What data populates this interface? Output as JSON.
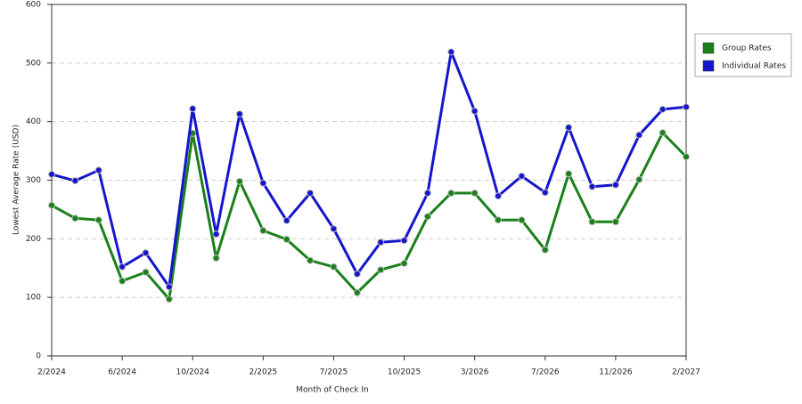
{
  "chart_data": {
    "type": "line",
    "x_label": "Month of Check In",
    "y_label": "Lowest Average Rate (USD)",
    "categories": [
      "2/2024",
      null,
      null,
      "6/2024",
      null,
      null,
      "10/2024",
      null,
      null,
      "2/2025",
      null,
      null,
      "7/2025",
      null,
      null,
      "10/2025",
      null,
      null,
      "3/2026",
      null,
      null,
      "7/2026",
      null,
      null,
      "11/2026",
      null,
      null,
      "2/2027"
    ],
    "series": [
      {
        "name": "Group Rates",
        "color": "#1a801a",
        "values": [
          257,
          235,
          232,
          128,
          143,
          97,
          380,
          167,
          298,
          214,
          199,
          163,
          152,
          108,
          147,
          158,
          238,
          278,
          278,
          232,
          232,
          181,
          311,
          229,
          229,
          301,
          381,
          340
        ]
      },
      {
        "name": "Individual Rates",
        "color": "#1515cc",
        "values": [
          310,
          299,
          317,
          152,
          176,
          118,
          422,
          208,
          413,
          295,
          231,
          278,
          217,
          140,
          194,
          197,
          278,
          519,
          418,
          273,
          307,
          279,
          390,
          289,
          292,
          377,
          421,
          425
        ]
      }
    ],
    "ylim": [
      0,
      600
    ],
    "yticks": [
      0,
      100,
      200,
      300,
      400,
      500,
      600
    ],
    "grid": true,
    "legend": "right"
  }
}
